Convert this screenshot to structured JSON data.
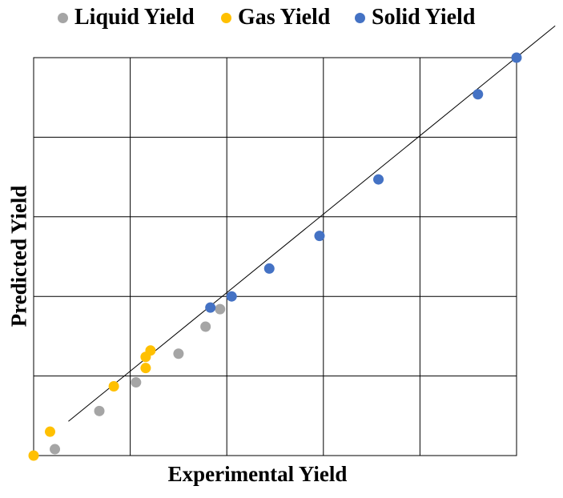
{
  "chart_data": {
    "type": "scatter",
    "title": "",
    "xlabel": "Experimental Yield",
    "ylabel": "Predicted Yield",
    "xlim": [
      0,
      5
    ],
    "ylim": [
      0,
      5
    ],
    "grid": true,
    "tick_labels_shown": false,
    "legend_position": "top",
    "series": [
      {
        "name": "Liquid Yield",
        "color": "#A5A5A5",
        "points": [
          [
            0.22,
            0.08
          ],
          [
            0.68,
            0.56
          ],
          [
            1.06,
            0.92
          ],
          [
            1.5,
            1.28
          ],
          [
            1.78,
            1.62
          ],
          [
            1.93,
            1.84
          ]
        ]
      },
      {
        "name": "Gas Yield",
        "color": "#FFC000",
        "points": [
          [
            0.0,
            0.0
          ],
          [
            0.17,
            0.3
          ],
          [
            0.83,
            0.87
          ],
          [
            1.16,
            1.1
          ],
          [
            1.16,
            1.24
          ],
          [
            1.21,
            1.32
          ]
        ]
      },
      {
        "name": "Solid Yield",
        "color": "#4472C4",
        "points": [
          [
            1.83,
            1.86
          ],
          [
            2.05,
            2.0
          ],
          [
            2.44,
            2.35
          ],
          [
            2.96,
            2.76
          ],
          [
            3.57,
            3.47
          ],
          [
            4.6,
            4.54
          ],
          [
            5.0,
            5.0
          ]
        ]
      }
    ],
    "reference_line": "y = x"
  }
}
